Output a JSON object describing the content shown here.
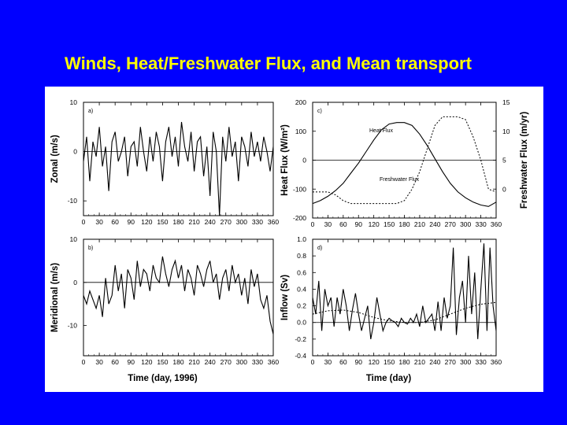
{
  "slide": {
    "title": "Winds, Heat/Freshwater Flux, and Mean transport",
    "background_color": "#0000ff",
    "title_color": "#ffff00"
  },
  "chart_data": [
    {
      "id": "a",
      "panel_tag": "a)",
      "type": "line",
      "ylabel": "Zonal (m/s)",
      "xlabel": "",
      "xlim": [
        0,
        360
      ],
      "ylim": [
        -13,
        10
      ],
      "xticks": [
        "0",
        "30",
        "60",
        "90",
        "120",
        "150",
        "180",
        "210",
        "240",
        "270",
        "300",
        "330",
        "360"
      ],
      "yticks": [
        {
          "v": 10,
          "label": "10"
        },
        {
          "v": 0,
          "label": "0"
        },
        {
          "v": -10,
          "label": "-10"
        }
      ],
      "zero_line": true,
      "series": [
        {
          "style": "solid",
          "x": [
            0,
            6,
            12,
            18,
            24,
            30,
            36,
            42,
            48,
            54,
            60,
            66,
            72,
            78,
            84,
            90,
            96,
            102,
            108,
            114,
            120,
            126,
            132,
            138,
            144,
            150,
            156,
            162,
            168,
            174,
            180,
            186,
            192,
            198,
            204,
            210,
            216,
            222,
            228,
            234,
            240,
            246,
            252,
            258,
            264,
            270,
            276,
            282,
            288,
            294,
            300,
            306,
            312,
            318,
            324,
            330,
            336,
            342,
            348,
            354,
            360
          ],
          "values": [
            -2,
            3,
            -6,
            2,
            -1,
            5,
            -3,
            1,
            -8,
            2,
            4,
            -2,
            0,
            3,
            -5,
            1,
            2,
            -3,
            5,
            0,
            -4,
            3,
            -2,
            4,
            1,
            -6,
            2,
            5,
            -1,
            3,
            -3,
            6,
            1,
            -2,
            4,
            -4,
            2,
            3,
            -5,
            1,
            -9,
            4,
            0,
            -13,
            3,
            -2,
            5,
            -1,
            2,
            -6,
            3,
            1,
            -3,
            4,
            -1,
            2,
            -2,
            3,
            0,
            -4,
            1
          ]
        }
      ]
    },
    {
      "id": "b",
      "panel_tag": "b)",
      "type": "line",
      "ylabel": "Meridional (m/s)",
      "xlabel": "Time (day, 1996)",
      "xlim": [
        0,
        360
      ],
      "ylim": [
        -17,
        10
      ],
      "xticks": [
        "0",
        "30",
        "60",
        "90",
        "120",
        "150",
        "180",
        "210",
        "240",
        "270",
        "300",
        "330",
        "360"
      ],
      "yticks": [
        {
          "v": 10,
          "label": "10"
        },
        {
          "v": 0,
          "label": "0"
        },
        {
          "v": -10,
          "label": "-10"
        }
      ],
      "zero_line": true,
      "series": [
        {
          "style": "solid",
          "x": [
            0,
            6,
            12,
            18,
            24,
            30,
            36,
            42,
            48,
            54,
            60,
            66,
            72,
            78,
            84,
            90,
            96,
            102,
            108,
            114,
            120,
            126,
            132,
            138,
            144,
            150,
            156,
            162,
            168,
            174,
            180,
            186,
            192,
            198,
            204,
            210,
            216,
            222,
            228,
            234,
            240,
            246,
            252,
            258,
            264,
            270,
            276,
            282,
            288,
            294,
            300,
            306,
            312,
            318,
            324,
            330,
            336,
            342,
            348,
            354,
            360
          ],
          "values": [
            -3,
            -5,
            -2,
            -4,
            -6,
            -3,
            -8,
            1,
            -5,
            -3,
            4,
            -2,
            2,
            -6,
            3,
            1,
            -4,
            5,
            -1,
            3,
            2,
            -2,
            4,
            1,
            0,
            6,
            2,
            -1,
            3,
            5,
            1,
            4,
            -2,
            3,
            1,
            -3,
            4,
            2,
            -1,
            3,
            5,
            0,
            2,
            -4,
            1,
            3,
            -2,
            4,
            0,
            2,
            -3,
            1,
            -5,
            3,
            -1,
            2,
            -4,
            -6,
            -3,
            -9,
            -12
          ]
        }
      ]
    },
    {
      "id": "c",
      "panel_tag": "c)",
      "type": "line",
      "ylabel": "Heat Flux (W/m²)",
      "y2label": "Freshwater Flux (m/yr)",
      "xlabel": "",
      "xlim": [
        0,
        360
      ],
      "ylim": [
        -200,
        200
      ],
      "y2lim": [
        -5,
        15
      ],
      "xticks": [
        "0",
        "30",
        "60",
        "90",
        "120",
        "150",
        "180",
        "210",
        "240",
        "270",
        "300",
        "330",
        "360"
      ],
      "yticks": [
        {
          "v": 200,
          "label": "200"
        },
        {
          "v": 100,
          "label": "100"
        },
        {
          "v": 0,
          "label": "0"
        },
        {
          "v": -100,
          "label": "-100"
        },
        {
          "v": -200,
          "label": "-200"
        }
      ],
      "y2ticks": [
        {
          "v": 15,
          "label": "15"
        },
        {
          "v": 10,
          "label": "10"
        },
        {
          "v": 5,
          "label": "5"
        },
        {
          "v": 0,
          "label": "0"
        }
      ],
      "zero_line": true,
      "series": [
        {
          "name": "Heat Flux",
          "style": "solid",
          "axis": "left",
          "x": [
            0,
            15,
            30,
            45,
            60,
            75,
            90,
            105,
            120,
            135,
            150,
            165,
            180,
            195,
            210,
            225,
            240,
            255,
            270,
            285,
            300,
            315,
            330,
            345,
            360
          ],
          "values": [
            -150,
            -140,
            -125,
            -105,
            -80,
            -45,
            -10,
            30,
            70,
            105,
            125,
            130,
            130,
            120,
            90,
            50,
            5,
            -40,
            -80,
            -110,
            -130,
            -145,
            -155,
            -160,
            -145
          ]
        },
        {
          "name": "Freshwater Flux",
          "style": "dashed",
          "axis": "right",
          "x": [
            0,
            15,
            30,
            45,
            60,
            75,
            90,
            105,
            120,
            135,
            150,
            165,
            180,
            195,
            210,
            225,
            240,
            255,
            270,
            285,
            300,
            315,
            330,
            345,
            360
          ],
          "values": [
            -0.5,
            -0.5,
            -0.5,
            -1,
            -2,
            -2.5,
            -2.5,
            -2.5,
            -2.5,
            -2.5,
            -2.5,
            -2.5,
            -2,
            0,
            3,
            7,
            11,
            12.5,
            12.5,
            12.5,
            12,
            9,
            5,
            0,
            -0.5
          ]
        }
      ],
      "annotations": [
        {
          "text": "Heat Flux",
          "near": "upper-left of peak"
        },
        {
          "text": "Freshwater Flux",
          "near": "center-bottom"
        }
      ]
    },
    {
      "id": "d",
      "panel_tag": "d)",
      "type": "line",
      "ylabel": "Inflow (Sv)",
      "xlabel": "Time (day)",
      "xlim": [
        0,
        360
      ],
      "ylim": [
        -0.4,
        1.0
      ],
      "xticks": [
        "0",
        "30",
        "60",
        "90",
        "120",
        "150",
        "180",
        "210",
        "240",
        "270",
        "300",
        "330",
        "360"
      ],
      "yticks": [
        {
          "v": 1.0,
          "label": "1.0"
        },
        {
          "v": 0.8,
          "label": "0.8"
        },
        {
          "v": 0.6,
          "label": "0.6"
        },
        {
          "v": 0.4,
          "label": "0.4"
        },
        {
          "v": 0.2,
          "label": "0.2"
        },
        {
          "v": 0.0,
          "label": "0.0"
        },
        {
          "v": -0.2,
          "label": "-0.2"
        },
        {
          "v": -0.4,
          "label": "-0.4"
        }
      ],
      "zero_line": true,
      "series": [
        {
          "style": "solid",
          "x": [
            0,
            6,
            12,
            18,
            24,
            30,
            36,
            42,
            48,
            54,
            60,
            66,
            72,
            78,
            84,
            90,
            96,
            102,
            108,
            114,
            120,
            126,
            132,
            138,
            144,
            150,
            156,
            162,
            168,
            174,
            180,
            186,
            192,
            198,
            204,
            210,
            216,
            222,
            228,
            234,
            240,
            246,
            252,
            258,
            264,
            270,
            276,
            282,
            288,
            294,
            300,
            306,
            312,
            318,
            324,
            330,
            336,
            342,
            348,
            354,
            360
          ],
          "values": [
            0.3,
            0.1,
            0.5,
            -0.1,
            0.4,
            0.2,
            0.3,
            -0.05,
            0.3,
            0.1,
            0.4,
            0.2,
            -0.1,
            0.15,
            0.35,
            0.1,
            -0.1,
            0.05,
            0.2,
            -0.2,
            0.0,
            0.3,
            0.1,
            -0.1,
            0.0,
            0.05,
            0.02,
            0.0,
            -0.05,
            0.05,
            0.0,
            -0.02,
            0.05,
            0.0,
            0.1,
            -0.05,
            0.2,
            0.0,
            0.05,
            0.1,
            -0.1,
            0.25,
            -0.1,
            0.3,
            0.05,
            0.2,
            0.9,
            -0.15,
            0.3,
            0.5,
            0.0,
            0.8,
            0.1,
            0.6,
            -0.2,
            0.4,
            0.95,
            -0.1,
            0.9,
            0.2,
            -0.1
          ]
        },
        {
          "style": "dashed",
          "x": [
            0,
            30,
            60,
            90,
            120,
            150,
            180,
            210,
            240,
            270,
            300,
            330,
            360
          ],
          "values": [
            0.1,
            0.14,
            0.15,
            0.12,
            0.06,
            0.02,
            0.0,
            0.0,
            0.03,
            0.1,
            0.17,
            0.22,
            0.24
          ]
        }
      ]
    }
  ]
}
